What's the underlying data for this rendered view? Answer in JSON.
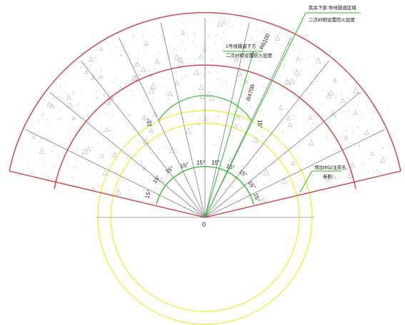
{
  "colors": {
    "outline": "#d23c3c",
    "radial": "#8a8a8a",
    "yellow": "#eeee44",
    "green": "#22bb22",
    "axis": "#888888",
    "text": "#222222",
    "hatch": "#b0b0b0"
  },
  "origin_label": "0",
  "angle_label": "15°",
  "radius_labels": [
    "R6100",
    "R4700"
  ],
  "annotations": {
    "top": [
      "其余下部 导线隧道区域",
      "二次衬砌设置防火层度"
    ],
    "middle": [
      "1号线隧道下方",
      "二次衬砌设置防火层度"
    ],
    "right": [
      "增加Φ52注浆孔",
      "参照"
    ]
  }
}
